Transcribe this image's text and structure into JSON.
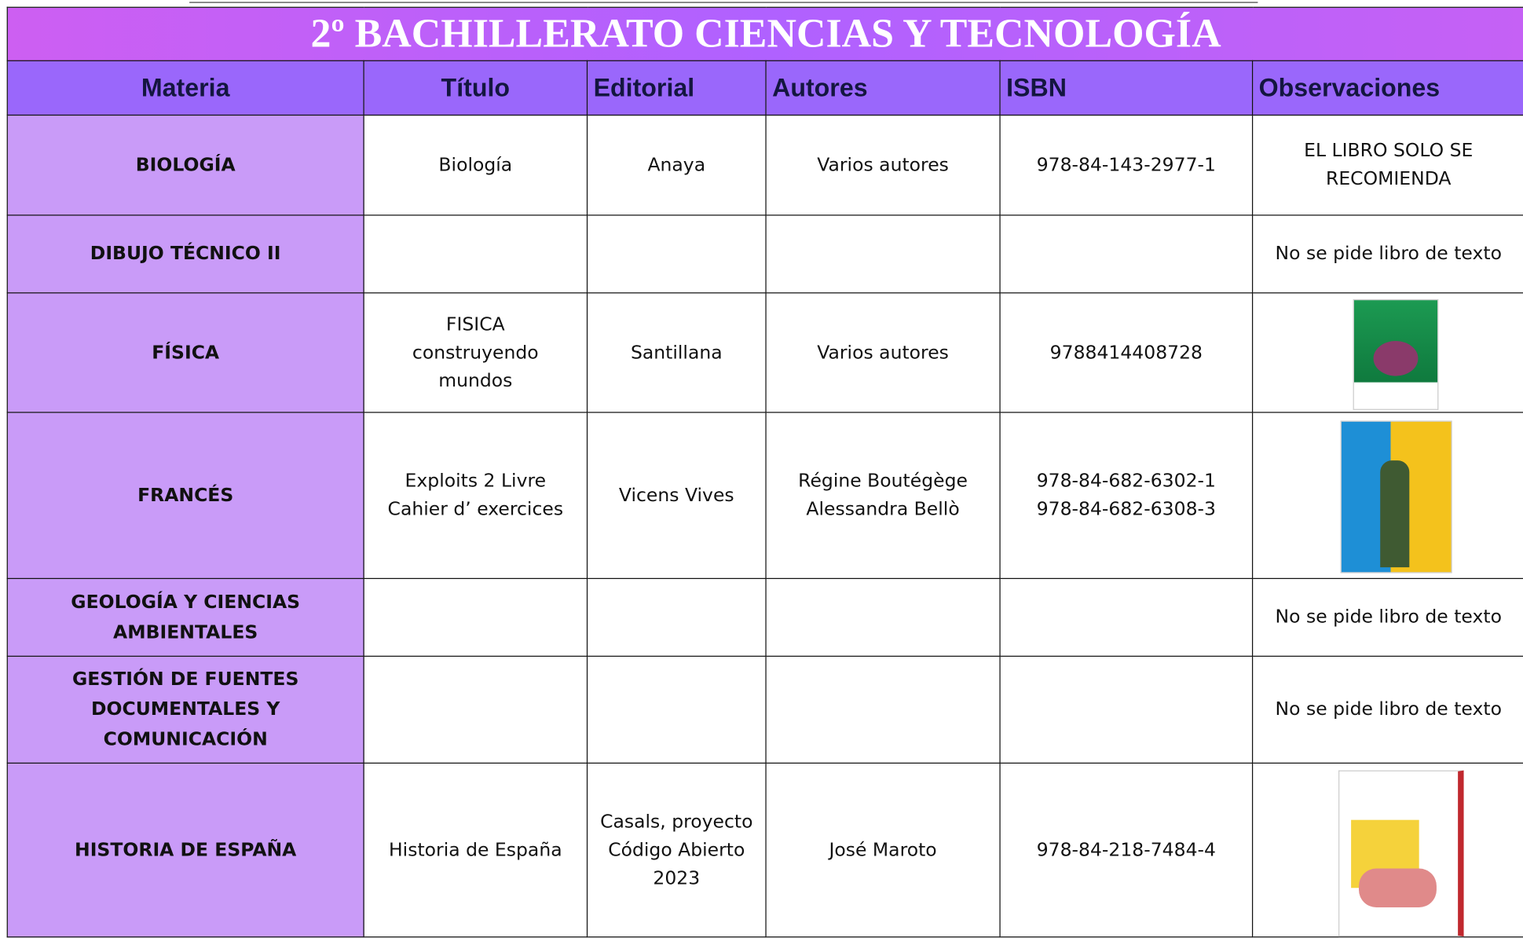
{
  "header": {
    "title": "2º BACHILLERATO CIENCIAS Y TECNOLOGÍA"
  },
  "table": {
    "columns": [
      "Materia",
      "Título",
      "Editorial",
      "Autores",
      "ISBN",
      "Observaciones"
    ],
    "rows": [
      {
        "materia": "BIOLOGÍA",
        "titulo": "Biología",
        "editorial": "Anaya",
        "autores": "Varios autores",
        "isbn": "978-84-143-2977-1",
        "observaciones": "EL LIBRO SOLO SE\nRECOMIENDA"
      },
      {
        "materia": "DIBUJO TÉCNICO II",
        "observaciones": "No se pide libro de texto"
      },
      {
        "materia": "FÍSICA",
        "titulo": "FISICA\nconstruyendo\nmundos",
        "editorial": "Santillana",
        "autores": "Varios autores",
        "isbn": "9788414408728"
      },
      {
        "materia": "FRANCÉS",
        "titulo": "Exploits 2 Livre\nCahier d’ exercices",
        "editorial": "Vicens Vives",
        "autores": "Régine Boutégège\nAlessandra Bellò",
        "isbn": "978-84-682-6302-1\n978-84-682-6308-3"
      },
      {
        "materia": "GEOLOGÍA Y CIENCIAS\nAMBIENTALES",
        "observaciones": "No se pide libro de texto"
      },
      {
        "materia": "GESTIÓN DE FUENTES\nDOCUMENTALES Y\nCOMUNICACIÓN",
        "observaciones": "No se pide libro de texto"
      },
      {
        "materia": "HISTORIA DE ESPAÑA",
        "titulo": "Historia de España",
        "editorial": "Casals, proyecto\nCódigo Abierto\n2023",
        "autores": "José Maroto",
        "isbn": "978-84-218-7484-4"
      }
    ]
  }
}
